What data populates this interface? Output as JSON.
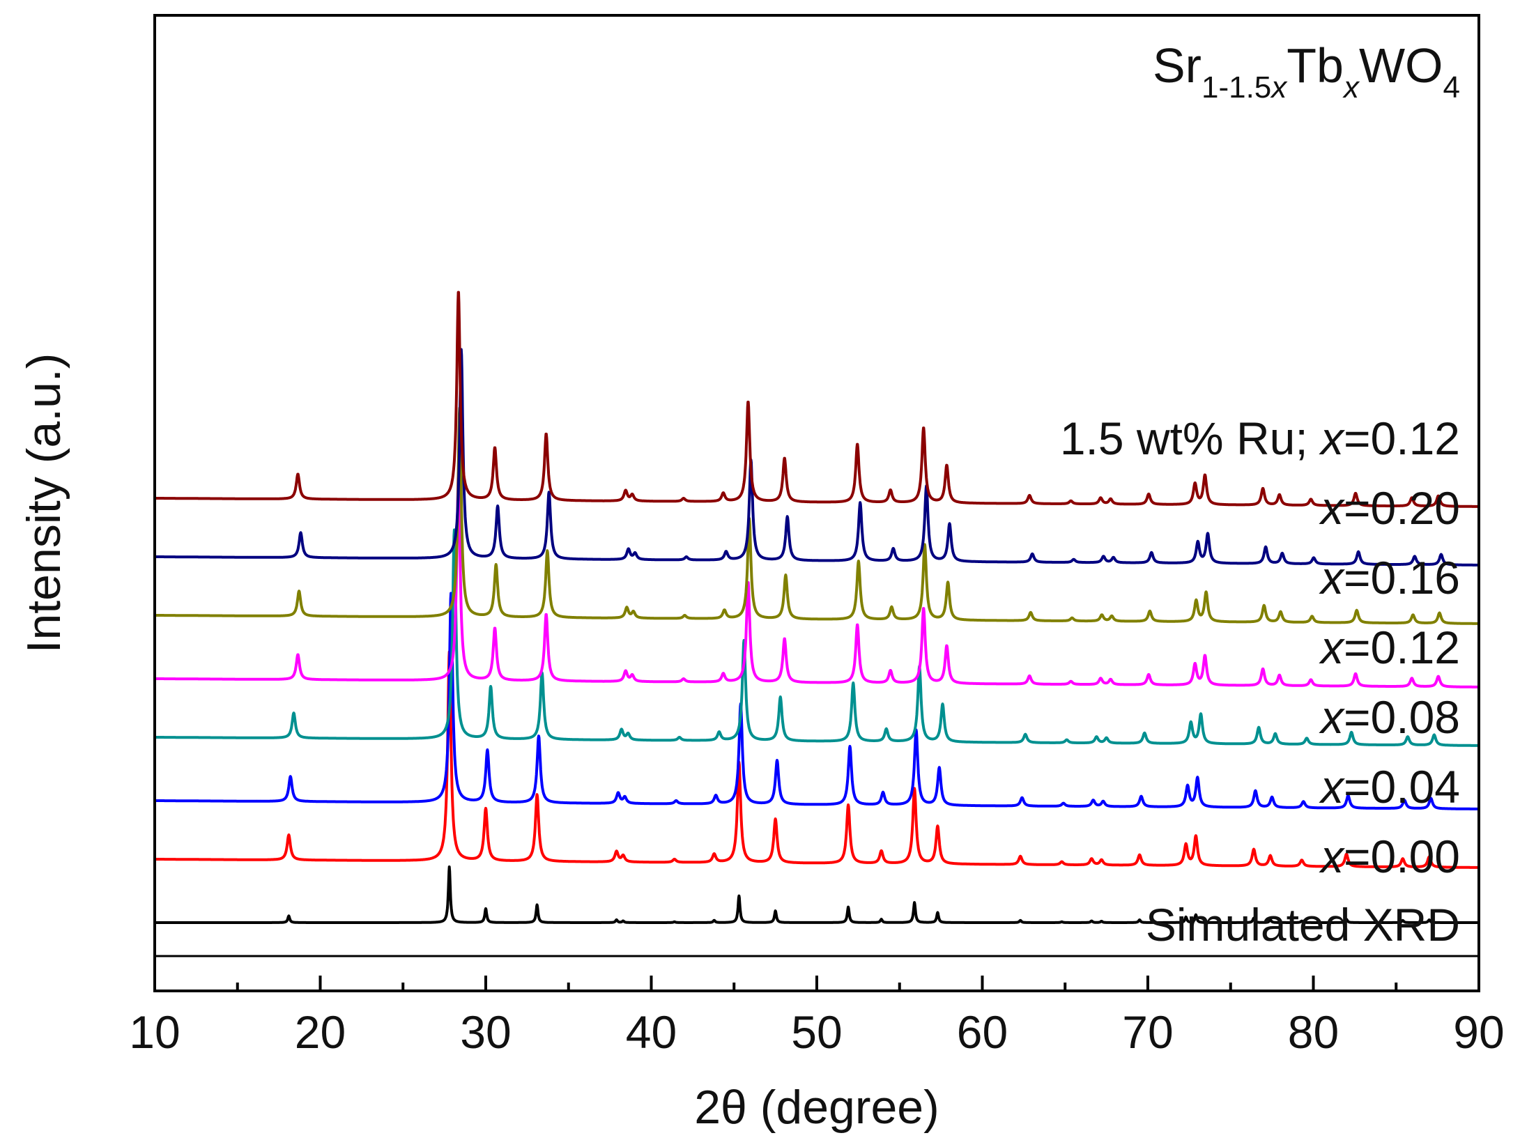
{
  "chart_data": {
    "type": "line",
    "title": "",
    "formula": {
      "parts": [
        {
          "text": "Sr",
          "sub": false,
          "italic": false
        },
        {
          "text": "1-1.5",
          "sub": true,
          "italic": false
        },
        {
          "text": "x",
          "sub": true,
          "italic": true
        },
        {
          "text": "Tb",
          "sub": false,
          "italic": false
        },
        {
          "text": "x",
          "sub": true,
          "italic": true
        },
        {
          "text": "WO",
          "sub": false,
          "italic": false
        },
        {
          "text": "4",
          "sub": true,
          "italic": false
        }
      ]
    },
    "xlabel": "2θ (degree)",
    "ylabel": "Intensity (a.u.)",
    "xlim": [
      10,
      90
    ],
    "xticks": [
      10,
      20,
      30,
      40,
      50,
      60,
      70,
      80,
      90
    ],
    "ylim": [
      0,
      100
    ],
    "grid": false,
    "peaks": [
      {
        "x": 18.1,
        "h": 0.12
      },
      {
        "x": 27.8,
        "h": 1.0
      },
      {
        "x": 30.0,
        "h": 0.25
      },
      {
        "x": 33.1,
        "h": 0.32
      },
      {
        "x": 37.9,
        "h": 0.05
      },
      {
        "x": 38.3,
        "h": 0.03
      },
      {
        "x": 41.4,
        "h": 0.015
      },
      {
        "x": 43.8,
        "h": 0.04
      },
      {
        "x": 45.3,
        "h": 0.48
      },
      {
        "x": 47.5,
        "h": 0.21
      },
      {
        "x": 51.9,
        "h": 0.28
      },
      {
        "x": 53.9,
        "h": 0.06
      },
      {
        "x": 55.9,
        "h": 0.36
      },
      {
        "x": 57.3,
        "h": 0.18
      },
      {
        "x": 62.3,
        "h": 0.04
      },
      {
        "x": 64.8,
        "h": 0.015
      },
      {
        "x": 66.6,
        "h": 0.03
      },
      {
        "x": 67.2,
        "h": 0.025
      },
      {
        "x": 69.5,
        "h": 0.05
      },
      {
        "x": 72.3,
        "h": 0.1
      },
      {
        "x": 72.9,
        "h": 0.14
      },
      {
        "x": 76.4,
        "h": 0.08
      },
      {
        "x": 77.4,
        "h": 0.05
      },
      {
        "x": 79.3,
        "h": 0.03
      },
      {
        "x": 82.0,
        "h": 0.06
      },
      {
        "x": 85.4,
        "h": 0.04
      },
      {
        "x": 87.0,
        "h": 0.05
      }
    ],
    "series": [
      {
        "name": "Simulated XRD",
        "label": "Simulated XRD",
        "color": "#000000",
        "baseline": 7,
        "scale": 1.0,
        "shift": 0.0,
        "width": 0.07,
        "fullScaleHeight": 80
      },
      {
        "name": "x=0.00",
        "label": {
          "var": "x",
          "rest": "=0.00"
        },
        "color": "#ff0000",
        "baseline": 13.5,
        "scale": 1.0,
        "shift": 0.0,
        "width": 0.12,
        "fullScaleHeight": 300
      },
      {
        "name": "x=0.04",
        "label": {
          "var": "x",
          "rest": "=0.04"
        },
        "color": "#0000ff",
        "baseline": 19.5,
        "scale": 1.0,
        "shift": 0.1,
        "width": 0.12,
        "fullScaleHeight": 300
      },
      {
        "name": "x=0.08",
        "label": {
          "var": "x",
          "rest": "=0.08"
        },
        "color": "#009090",
        "baseline": 26,
        "scale": 1.0,
        "shift": 0.3,
        "width": 0.12,
        "fullScaleHeight": 300
      },
      {
        "name": "x=0.12",
        "label": {
          "var": "x",
          "rest": "=0.12"
        },
        "color": "#ff00ff",
        "baseline": 32,
        "scale": 1.0,
        "shift": 0.55,
        "width": 0.12,
        "fullScaleHeight": 300
      },
      {
        "name": "x=0.16",
        "label": {
          "var": "x",
          "rest": "=0.16"
        },
        "color": "#808000",
        "baseline": 38.5,
        "scale": 1.0,
        "shift": 0.62,
        "width": 0.12,
        "fullScaleHeight": 300
      },
      {
        "name": "x=0.20",
        "label": {
          "var": "x",
          "rest": "=0.20"
        },
        "color": "#000080",
        "baseline": 44.5,
        "scale": 1.0,
        "shift": 0.72,
        "width": 0.12,
        "fullScaleHeight": 300
      },
      {
        "name": "1.5 wt% Ru; x=0.12",
        "label": {
          "prefix": "1.5 wt% Ru; ",
          "var": "x",
          "rest": "=0.12"
        },
        "color": "#8b0000",
        "baseline": 50.5,
        "scale": 1.0,
        "shift": 0.55,
        "width": 0.12,
        "fullScaleHeight": 300
      }
    ]
  }
}
